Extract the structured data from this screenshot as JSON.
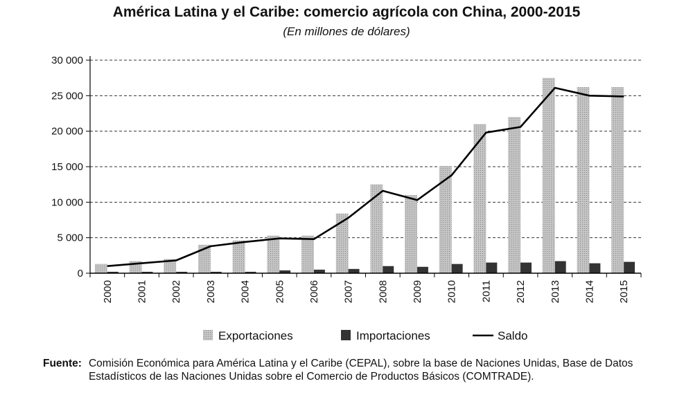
{
  "header": {
    "title": "América Latina y el Caribe: comercio agrícola con China, 2000-2015",
    "subtitle": "(En millones de dólares)"
  },
  "source": {
    "label": "Fuente:",
    "text": "Comisión Económica para América Latina y el Caribe (CEPAL), sobre la base de Naciones Unidas, Base de Datos Estadísticos de las Naciones Unidas sobre el Comercio de Productos Básicos (COMTRADE)."
  },
  "colors": {
    "exports": "#c4c4c4",
    "imports": "#333333",
    "balance": "#000000",
    "grid": "#333333"
  },
  "chart_data": {
    "type": "bar",
    "title": "América Latina y el Caribe: comercio agrícola con China, 2000-2015",
    "subtitle": "(En millones de dólares)",
    "xlabel": "",
    "ylabel": "",
    "ylim": [
      0,
      30000
    ],
    "yticks": [
      0,
      5000,
      10000,
      15000,
      20000,
      25000,
      30000
    ],
    "ytick_labels": [
      "0",
      "5 000",
      "10 000",
      "15 000",
      "20 000",
      "25 000",
      "30 000"
    ],
    "grid": true,
    "grid_style": "dashed horizontal",
    "legend_position": "bottom",
    "categories": [
      "2000",
      "2001",
      "2002",
      "2003",
      "2004",
      "2005",
      "2006",
      "2007",
      "2008",
      "2009",
      "2010",
      "2011",
      "2012",
      "2013",
      "2014",
      "2015"
    ],
    "series": [
      {
        "name": "Exportaciones",
        "kind": "bar",
        "values": [
          1300,
          1700,
          2000,
          4000,
          4600,
          5300,
          5300,
          8400,
          12500,
          11000,
          15100,
          21000,
          22000,
          27500,
          26200,
          26200
        ]
      },
      {
        "name": "Importaciones",
        "kind": "bar",
        "values": [
          200,
          200,
          200,
          200,
          200,
          400,
          500,
          600,
          1000,
          900,
          1300,
          1500,
          1500,
          1700,
          1400,
          1600
        ]
      },
      {
        "name": "Saldo",
        "kind": "line",
        "values": [
          1000,
          1400,
          1800,
          3800,
          4400,
          4900,
          4800,
          7800,
          11600,
          10300,
          13800,
          19800,
          20600,
          26100,
          25000,
          24900
        ]
      }
    ]
  }
}
